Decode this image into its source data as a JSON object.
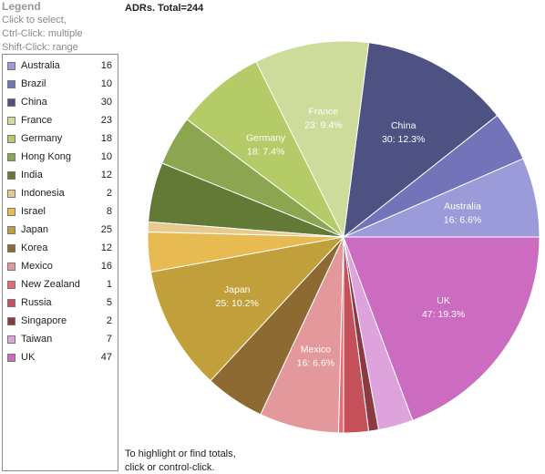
{
  "legend": {
    "title": "Legend",
    "hint_lines": [
      "Click to select,",
      "Ctrl-Click: multiple",
      "Shift-Click: range"
    ]
  },
  "chart_title": "ADRs. Total=244",
  "footer": [
    "To highlight or find totals,",
    "click or control-click."
  ],
  "chart_data": {
    "type": "pie",
    "title": "ADRs. Total=244",
    "total": 244,
    "slices": [
      {
        "name": "Australia",
        "value": 16,
        "pct": "6.6%",
        "color": "#9b9bd9",
        "label": "16:  6.6%"
      },
      {
        "name": "Brazil",
        "value": 10,
        "pct": "4.1%",
        "color": "#7373ba"
      },
      {
        "name": "China",
        "value": 30,
        "pct": "12.3%",
        "color": "#4d5282",
        "label": "30:  12.3%"
      },
      {
        "name": "France",
        "value": 23,
        "pct": "9.4%",
        "color": "#cddc9b",
        "label": "23:  9.4%"
      },
      {
        "name": "Germany",
        "value": 18,
        "pct": "7.4%",
        "color": "#b5cb68",
        "label": "18:  7.4%"
      },
      {
        "name": "Hong Kong",
        "value": 10,
        "pct": "4.1%",
        "color": "#8ca551"
      },
      {
        "name": "India",
        "value": 12,
        "pct": "4.9%",
        "color": "#637a37"
      },
      {
        "name": "Indonesia",
        "value": 2,
        "pct": "0.8%",
        "color": "#e6cb8f"
      },
      {
        "name": "Israel",
        "value": 8,
        "pct": "3.3%",
        "color": "#e8bb52"
      },
      {
        "name": "Japan",
        "value": 25,
        "pct": "10.2%",
        "color": "#c19f3a",
        "label": "25:  10.2%"
      },
      {
        "name": "Korea",
        "value": 12,
        "pct": "4.9%",
        "color": "#8c6a31"
      },
      {
        "name": "Mexico",
        "value": 16,
        "pct": "6.6%",
        "color": "#e3999b",
        "label": "16:  6.6%"
      },
      {
        "name": "New Zealand",
        "value": 1,
        "pct": "0.4%",
        "color": "#e36d74"
      },
      {
        "name": "Russia",
        "value": 5,
        "pct": "2.0%",
        "color": "#c6505a"
      },
      {
        "name": "Singapore",
        "value": 2,
        "pct": "0.8%",
        "color": "#8c3a3f"
      },
      {
        "name": "Taiwan",
        "value": 7,
        "pct": "2.9%",
        "color": "#dea3dd"
      },
      {
        "name": "UK",
        "value": 47,
        "pct": "19.3%",
        "color": "#cb6cc0",
        "label": "47:  19.3%"
      }
    ]
  }
}
